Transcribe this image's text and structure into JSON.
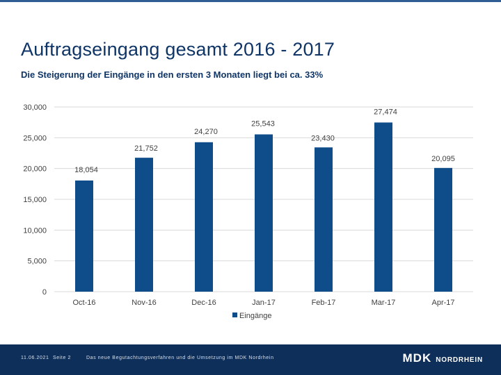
{
  "slide": {
    "title": "Auftragseingang gesamt 2016 - 2017",
    "subtitle": "Die Steigerung der Eingänge in den ersten 3 Monaten liegt bei ca. 33%"
  },
  "footer": {
    "date": "11.06.2021",
    "page": "Seite 2",
    "text": "Das neue Begutachtungsverfahren und die Umsetzung im MDK Nordrhein",
    "logo_main": "MDK",
    "logo_sub": "NORDRHEIN"
  },
  "colors": {
    "bar": "#0f4c8a",
    "grid": "#d9d9d9",
    "axis_text": "#404040",
    "title": "#0f3567"
  },
  "chart_data": {
    "type": "bar",
    "categories": [
      "Oct-16",
      "Nov-16",
      "Dec-16",
      "Jan-17",
      "Feb-17",
      "Mar-17",
      "Apr-17"
    ],
    "series": [
      {
        "name": "Eingänge",
        "values": [
          18054,
          21752,
          24270,
          25543,
          23430,
          27474,
          20095
        ],
        "labels": [
          "18,054",
          "21,752",
          "24,270",
          "25,543",
          "23,430",
          "27,474",
          "20,095"
        ]
      }
    ],
    "yticks": [
      0,
      5000,
      10000,
      15000,
      20000,
      25000,
      30000
    ],
    "ytick_labels": [
      "0",
      "5,000",
      "10,000",
      "15,000",
      "20,000",
      "25,000",
      "30,000"
    ],
    "ylim": [
      0,
      30000
    ],
    "grid": true,
    "legend": "bottom-center"
  }
}
